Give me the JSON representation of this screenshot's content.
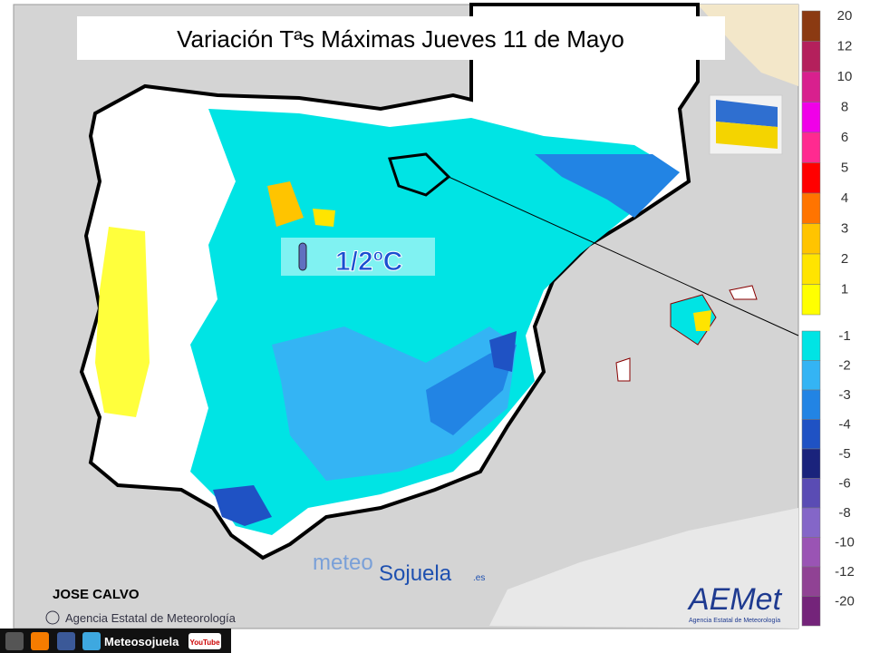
{
  "header": {
    "title": "Variación Tªs Máximas Jueves 11 de Mayo"
  },
  "annotation": {
    "label": "1/2ºC"
  },
  "legend": {
    "positive": [
      {
        "label": 20,
        "color": "#8b3a12"
      },
      {
        "label": 12,
        "color": "#b4205c"
      },
      {
        "label": 10,
        "color": "#d8208e"
      },
      {
        "label": 8,
        "color": "#f000e8"
      },
      {
        "label": 6,
        "color": "#ff2a90"
      },
      {
        "label": 5,
        "color": "#ff0000"
      },
      {
        "label": 4,
        "color": "#ff7400"
      },
      {
        "label": 3,
        "color": "#ffc400"
      },
      {
        "label": 2,
        "color": "#ffe400"
      },
      {
        "label": 1,
        "color": "#ffff00"
      }
    ],
    "negative": [
      {
        "label": -1,
        "color": "#00e4e4"
      },
      {
        "label": -2,
        "color": "#34b4f4"
      },
      {
        "label": -3,
        "color": "#2284e4"
      },
      {
        "label": -4,
        "color": "#1f52c4"
      },
      {
        "label": -5,
        "color": "#1a237c"
      },
      {
        "label": -6,
        "color": "#5a4cb4"
      },
      {
        "label": -8,
        "color": "#8466c8"
      },
      {
        "label": -10,
        "color": "#9a54b4"
      },
      {
        "label": -12,
        "color": "#904294"
      },
      {
        "label": -20,
        "color": "#74247a"
      }
    ]
  },
  "credits": {
    "author": "JOSE CALVO",
    "source": "Agencia Estatal de Meteorología",
    "brand_left": "meteo",
    "brand_right": "Sojuela",
    "brand_domain": ".es",
    "aemet": "AEMet",
    "aemet_sub": "Agencia Estatal de Meteorología"
  },
  "footer": {
    "social": "Meteosojuela",
    "youtube": "YouTube"
  }
}
